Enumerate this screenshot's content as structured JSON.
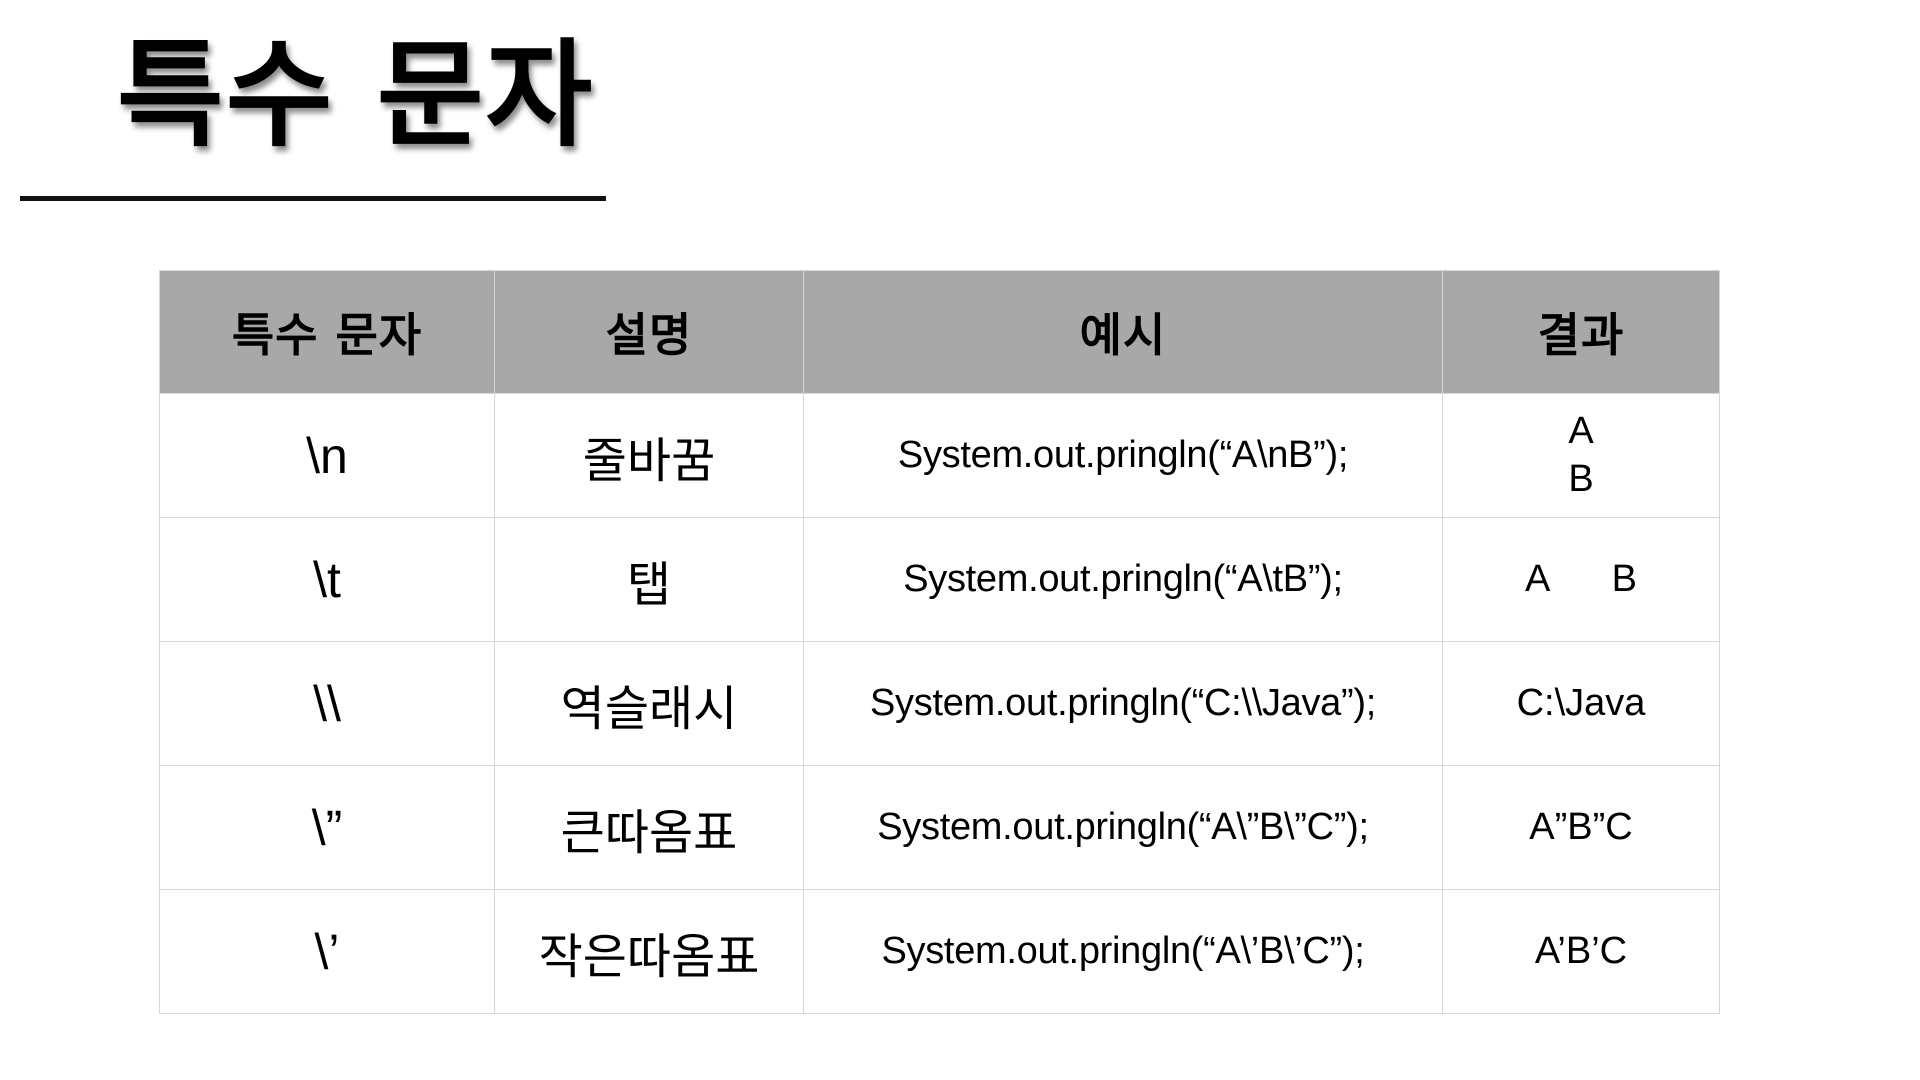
{
  "title": "특수 문자",
  "table": {
    "headers": [
      "특수 문자",
      "설명",
      "예시",
      "결과"
    ],
    "rows": [
      {
        "char": "\\n",
        "desc": "줄바꿈",
        "example": "System.out.pringln(“A\\nB”);",
        "result": "A\nB"
      },
      {
        "char": "\\t",
        "desc": "탭",
        "example": "System.out.pringln(“A\\tB”);",
        "result": "A      B"
      },
      {
        "char": "\\\\",
        "desc": "역슬래시",
        "example": "System.out.pringln(“C:\\\\Java”);",
        "result": "C:\\Java"
      },
      {
        "char": "\\”",
        "desc": "큰따옴표",
        "example": "System.out.pringln(“A\\”B\\”C”);",
        "result": "A”B”C"
      },
      {
        "char": "\\’",
        "desc": "작은따옴표",
        "example": "System.out.pringln(“A\\’B\\’C”);",
        "result": "A’B’C"
      }
    ]
  },
  "colors": {
    "header_background": "#a8a8a8",
    "grid_line": "#d6d6d6",
    "title_rule": "#111111"
  }
}
